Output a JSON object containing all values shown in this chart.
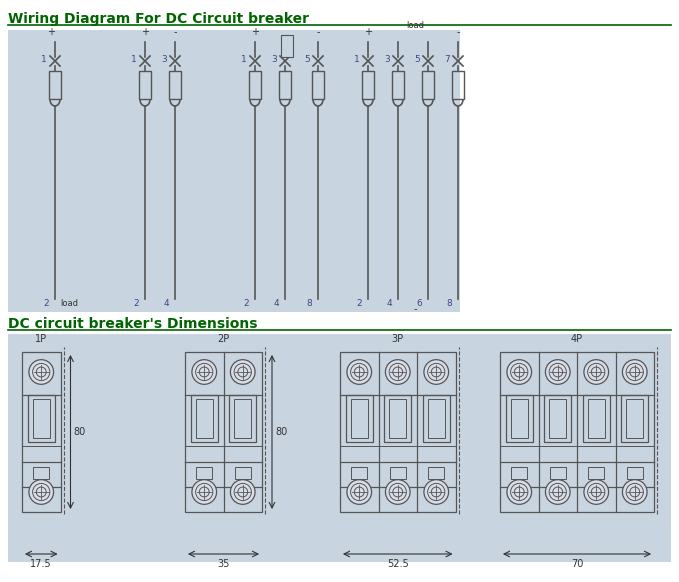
{
  "title1": "Wiring Diagram For DC Circuit breaker",
  "title2": "DC circuit breaker's Dimensions",
  "title_color": "#006400",
  "bg_color": "#c8d4e0",
  "bg_color2": "#ccd8e4",
  "line_color": "#555555",
  "dark_green": "#006400",
  "fig_bg": "#ffffff",
  "wiring_bg": "#c8d4e0",
  "dim_bg": "#c8d4e0",
  "poles": [
    "1P",
    "2P",
    "3P",
    "4P"
  ],
  "widths": [
    "17.5",
    "35",
    "52.5",
    "70"
  ],
  "height_label": "80"
}
